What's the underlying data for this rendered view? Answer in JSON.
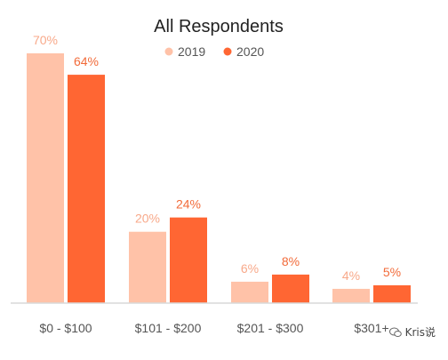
{
  "chart_data": {
    "type": "bar",
    "title": "All Respondents",
    "categories": [
      "$0 - $100",
      "$101 - $200",
      "$201 - $300",
      "$301+"
    ],
    "series": [
      {
        "name": "2019",
        "values": [
          70,
          20,
          6,
          4
        ],
        "labels": [
          "70%",
          "20%",
          "6%",
          "4%"
        ],
        "color": "#FFC2A8",
        "label_color": "#F8A98A"
      },
      {
        "name": "2020",
        "values": [
          64,
          24,
          8,
          5
        ],
        "labels": [
          "64%",
          "24%",
          "8%",
          "5%"
        ],
        "color": "#FF6633",
        "label_color": "#F26B3A"
      }
    ],
    "ylim": [
      0,
      70
    ],
    "grid": false,
    "legend_position": "top-center"
  },
  "watermark": {
    "text": "Kris说",
    "icon": "wechat-icon"
  },
  "colors": {
    "axis": "#d9d9d9",
    "title": "#222222",
    "tick_label": "#555555"
  }
}
